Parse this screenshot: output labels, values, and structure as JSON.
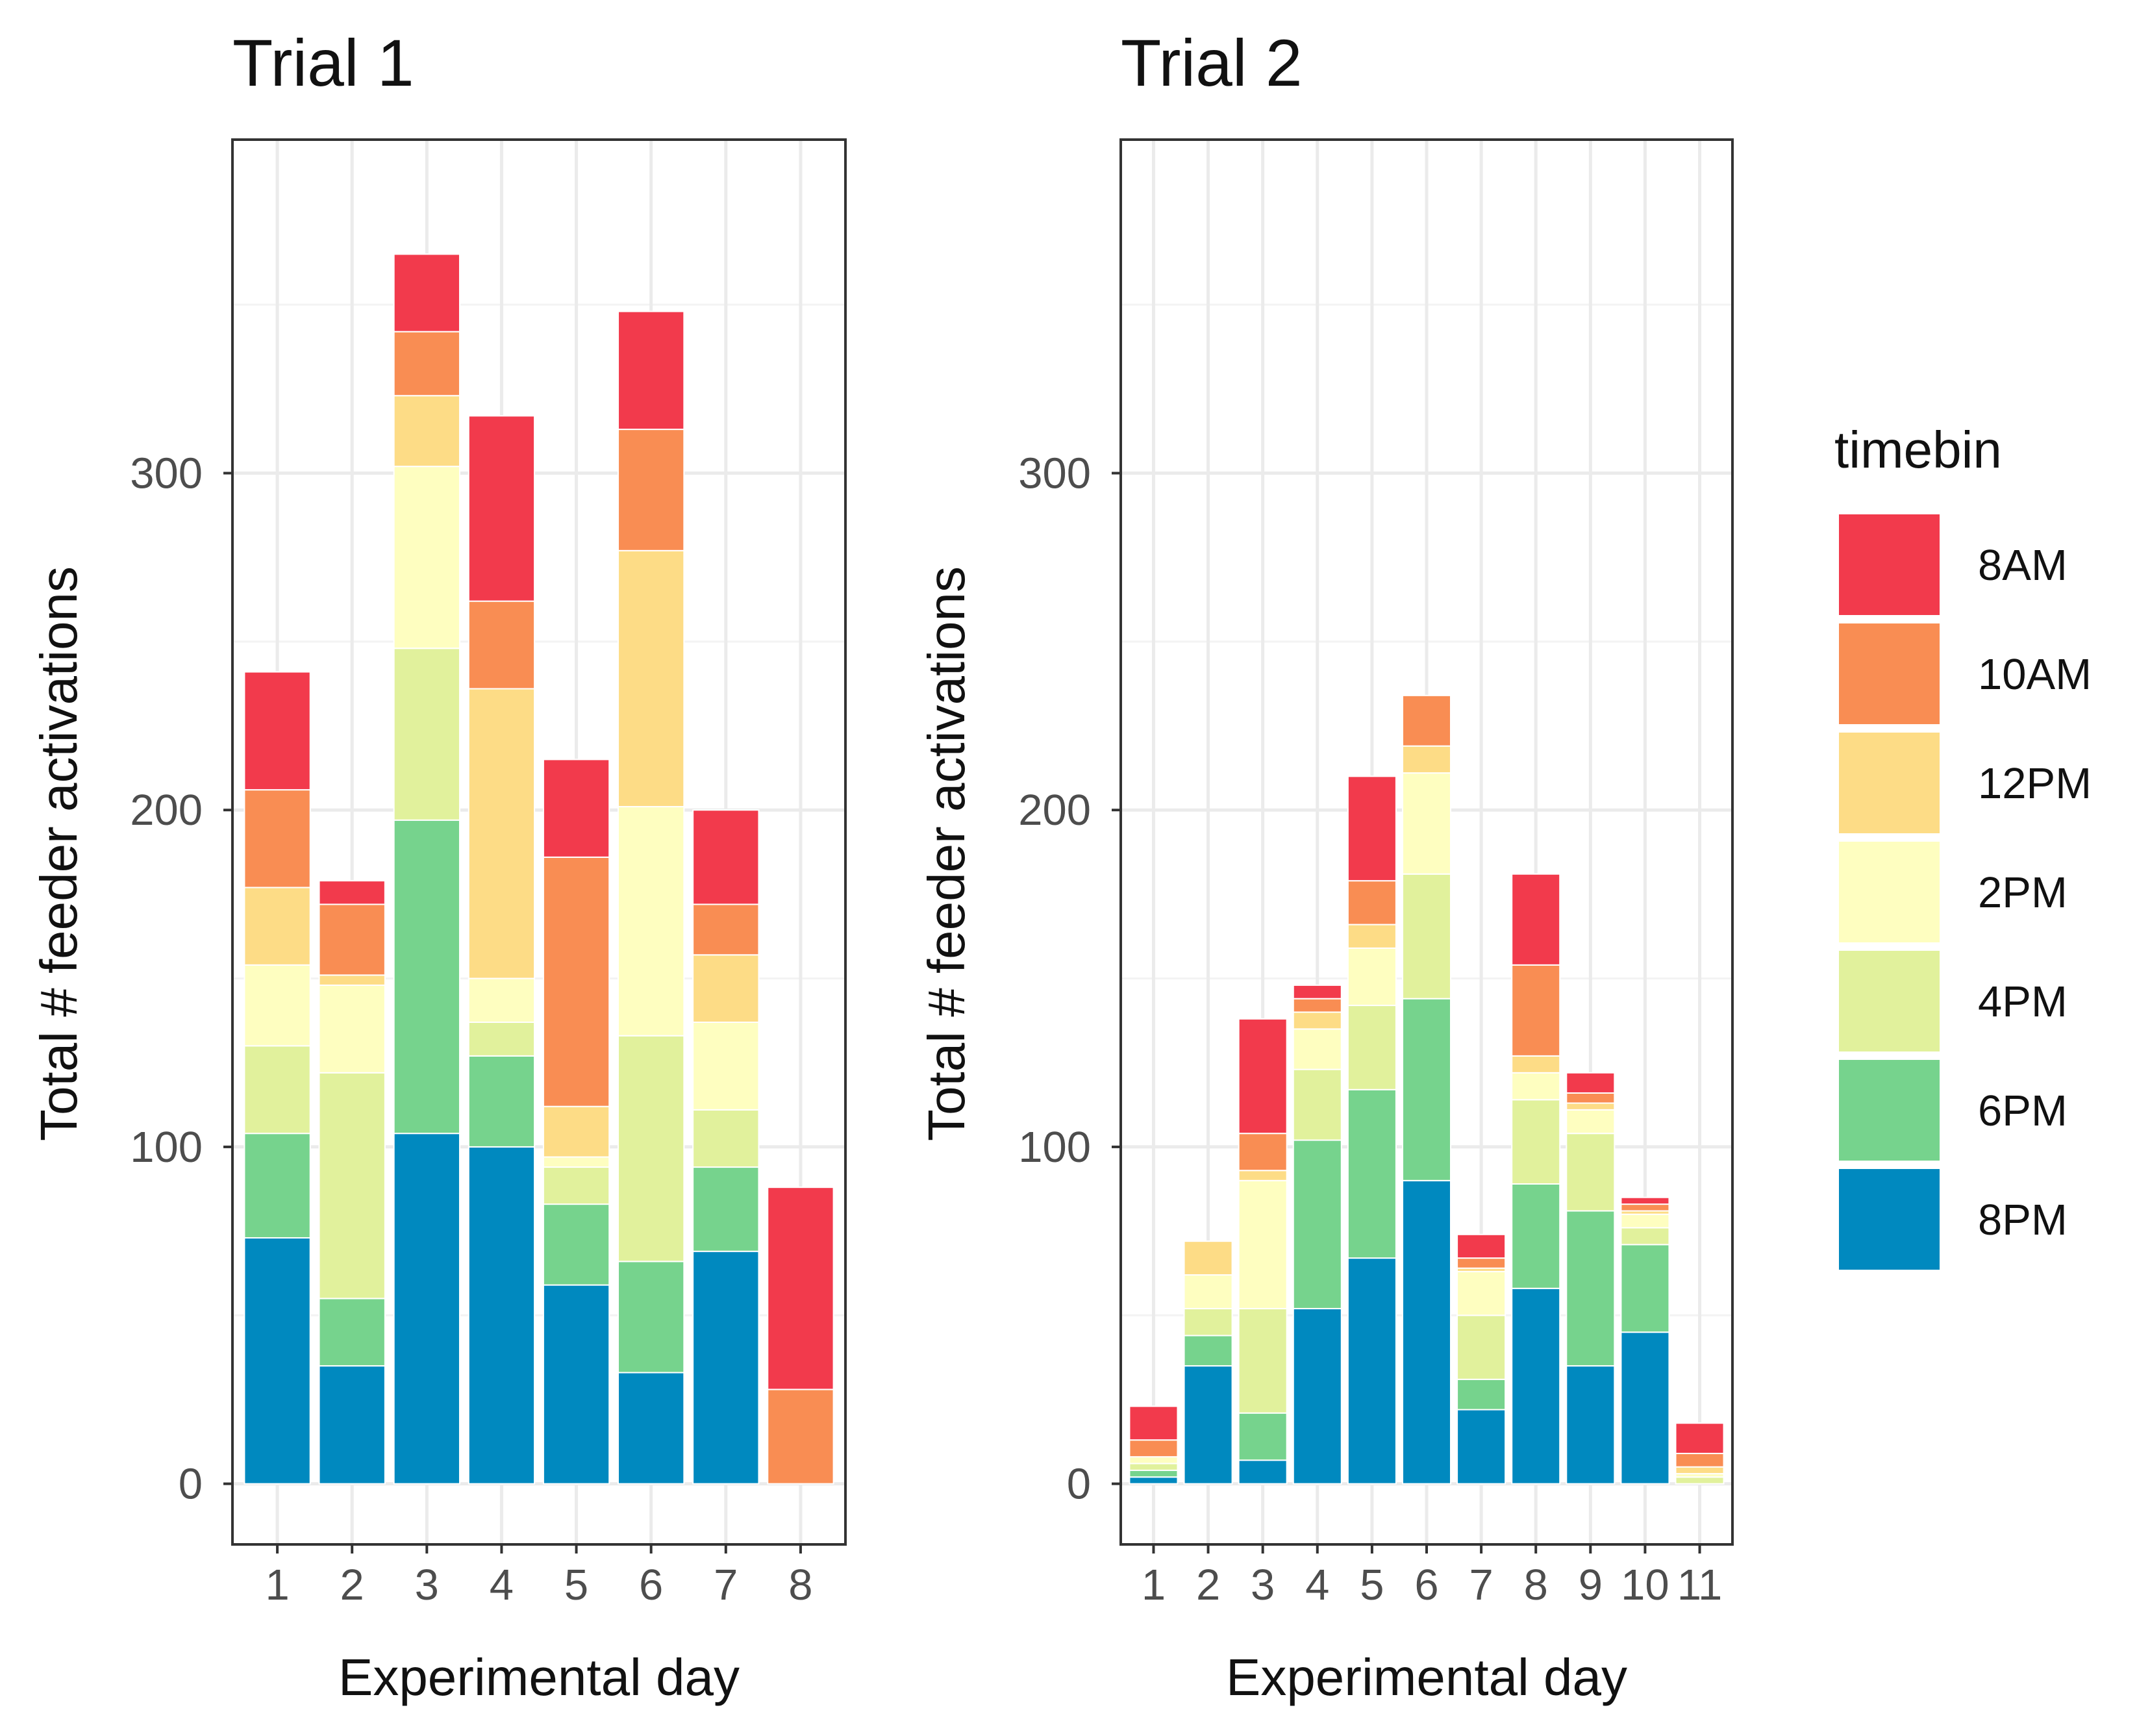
{
  "chart_data": {
    "type": "bar",
    "stacked": true,
    "facets": [
      {
        "title": "Trial 1",
        "xlabel": "Experimental day",
        "ylabel": "Total # feeder activations",
        "categories": [
          "1",
          "2",
          "3",
          "4",
          "5",
          "6",
          "7",
          "8"
        ],
        "series": [
          {
            "name": "8PM",
            "values": [
              73,
              35,
              104,
              100,
              59,
              33,
              69,
              0
            ]
          },
          {
            "name": "6PM",
            "values": [
              31,
              20,
              93,
              27,
              24,
              33,
              25,
              0
            ]
          },
          {
            "name": "4PM",
            "values": [
              26,
              67,
              51,
              10,
              11,
              67,
              17,
              0
            ]
          },
          {
            "name": "2PM",
            "values": [
              24,
              26,
              54,
              13,
              3,
              68,
              26,
              0
            ]
          },
          {
            "name": "12PM",
            "values": [
              23,
              3,
              21,
              86,
              15,
              76,
              20,
              0
            ]
          },
          {
            "name": "10AM",
            "values": [
              29,
              21,
              19,
              26,
              74,
              36,
              15,
              28
            ]
          },
          {
            "name": "8AM",
            "values": [
              35,
              7,
              23,
              55,
              29,
              35,
              28,
              60
            ]
          }
        ]
      },
      {
        "title": "Trial 2",
        "xlabel": "Experimental day",
        "ylabel": "Total # feeder activations",
        "categories": [
          "1",
          "2",
          "3",
          "4",
          "5",
          "6",
          "7",
          "8",
          "9",
          "10",
          "11"
        ],
        "series": [
          {
            "name": "8PM",
            "values": [
              2,
              35,
              7,
              52,
              67,
              90,
              22,
              58,
              35,
              45,
              0
            ]
          },
          {
            "name": "6PM",
            "values": [
              2,
              9,
              14,
              50,
              50,
              54,
              9,
              31,
              46,
              26,
              0
            ]
          },
          {
            "name": "4PM",
            "values": [
              2,
              8,
              31,
              21,
              25,
              37,
              19,
              25,
              23,
              5,
              2
            ]
          },
          {
            "name": "2PM",
            "values": [
              2,
              10,
              38,
              12,
              17,
              30,
              13,
              8,
              7,
              4,
              1
            ]
          },
          {
            "name": "12PM",
            "values": [
              0,
              10,
              3,
              5,
              7,
              8,
              1,
              5,
              2,
              1,
              2
            ]
          },
          {
            "name": "10AM",
            "values": [
              5,
              0,
              11,
              4,
              13,
              15,
              3,
              27,
              3,
              2,
              4
            ]
          },
          {
            "name": "8AM",
            "values": [
              10,
              0,
              34,
              4,
              31,
              0,
              7,
              27,
              6,
              2,
              9
            ]
          }
        ]
      }
    ],
    "yticks": [
      0,
      100,
      200,
      300
    ],
    "ylim": [
      -18,
      399
    ],
    "grid": true,
    "legend": {
      "title": "timebin",
      "position": "right",
      "entries": [
        "8AM",
        "10AM",
        "12PM",
        "2PM",
        "4PM",
        "6PM",
        "8PM"
      ]
    },
    "colors": {
      "8AM": "#F23A4C",
      "10AM": "#F98D53",
      "12PM": "#FDDC86",
      "2PM": "#FEFEC0",
      "4PM": "#E1F19C",
      "6PM": "#76D38D",
      "8PM": "#0089BF"
    }
  }
}
